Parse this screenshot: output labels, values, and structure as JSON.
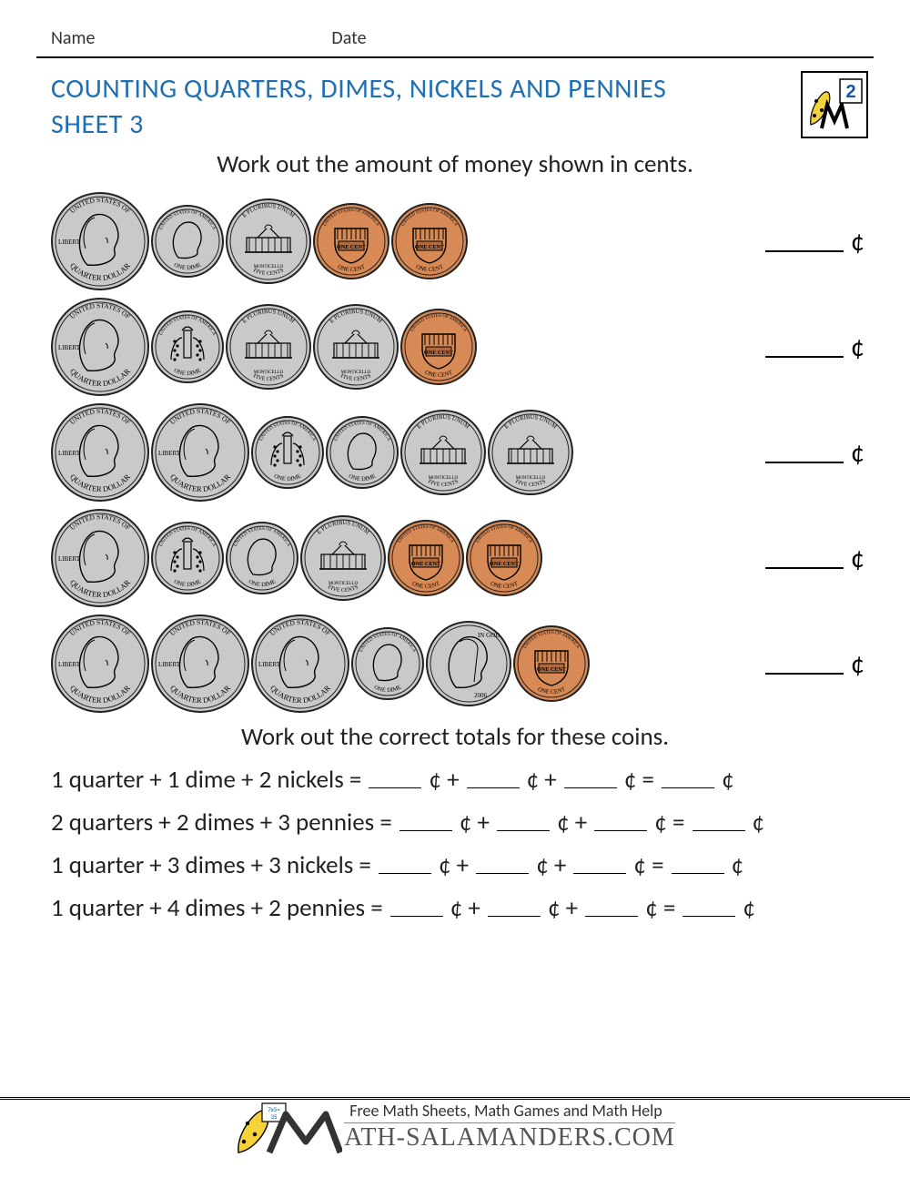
{
  "meta": {
    "name_label": "Name",
    "date_label": "Date"
  },
  "title_line1": "COUNTING QUARTERS, DIMES, NICKELS AND PENNIES",
  "title_line2": "SHEET 3",
  "grade_badge": {
    "number": "2"
  },
  "instruction1": "Work out the amount of money shown in cents.",
  "instruction2": "Work out the correct totals for these coins.",
  "cent_symbol": "¢",
  "coin_styles": {
    "quarter": {
      "diameter": 108,
      "fill": "#c9cac8",
      "stroke": "#222",
      "top_text": "UNITED STATES OF",
      "bottom_text": "QUARTER DOLLAR",
      "left_text": "LIBERTY"
    },
    "dime": {
      "diameter": 80,
      "fill": "#c9cac8",
      "stroke": "#222",
      "top_text": "UNITED STATES OF AMERICA",
      "bottom_text": "ONE DIME"
    },
    "nickel": {
      "diameter": 94,
      "fill": "#c9cac8",
      "stroke": "#222",
      "top_text": "E PLURIBUS UNUM",
      "bottom_text": "FIVE CENTS",
      "mid_text": "MONTICELLO"
    },
    "nickel_head": {
      "diameter": 94,
      "fill": "#c9cac8",
      "stroke": "#222",
      "top_text": "IN GOD",
      "bottom_text": "2006"
    },
    "dime_head": {
      "diameter": 80,
      "fill": "#c9cac8",
      "stroke": "#222"
    },
    "penny": {
      "diameter": 84,
      "fill": "#d88a56",
      "stroke": "#222",
      "top_text": "UNITED STATES OF AMERICA",
      "bottom_text": "ONE CENT"
    }
  },
  "rows": [
    {
      "coins": [
        "quarter",
        "dime_head",
        "nickel",
        "penny",
        "penny"
      ]
    },
    {
      "coins": [
        "quarter",
        "dime",
        "nickel",
        "nickel",
        "penny"
      ]
    },
    {
      "coins": [
        "quarter",
        "quarter",
        "dime",
        "dime_head",
        "nickel",
        "nickel"
      ]
    },
    {
      "coins": [
        "quarter",
        "dime",
        "dime_head",
        "nickel",
        "penny",
        "penny"
      ]
    },
    {
      "coins": [
        "quarter",
        "quarter",
        "quarter",
        "dime_head",
        "nickel_head",
        "penny"
      ]
    }
  ],
  "equations": [
    "1 quarter + 1 dime + 2 nickels",
    "2 quarters + 2 dimes + 3 pennies",
    "1 quarter + 3 dimes + 3 nickels",
    "1 quarter + 4 dimes + 2 pennies"
  ],
  "footer": {
    "tagline": "Free Math Sheets, Math Games and Math Help",
    "site": "ATH-SALAMANDERS.COM"
  }
}
